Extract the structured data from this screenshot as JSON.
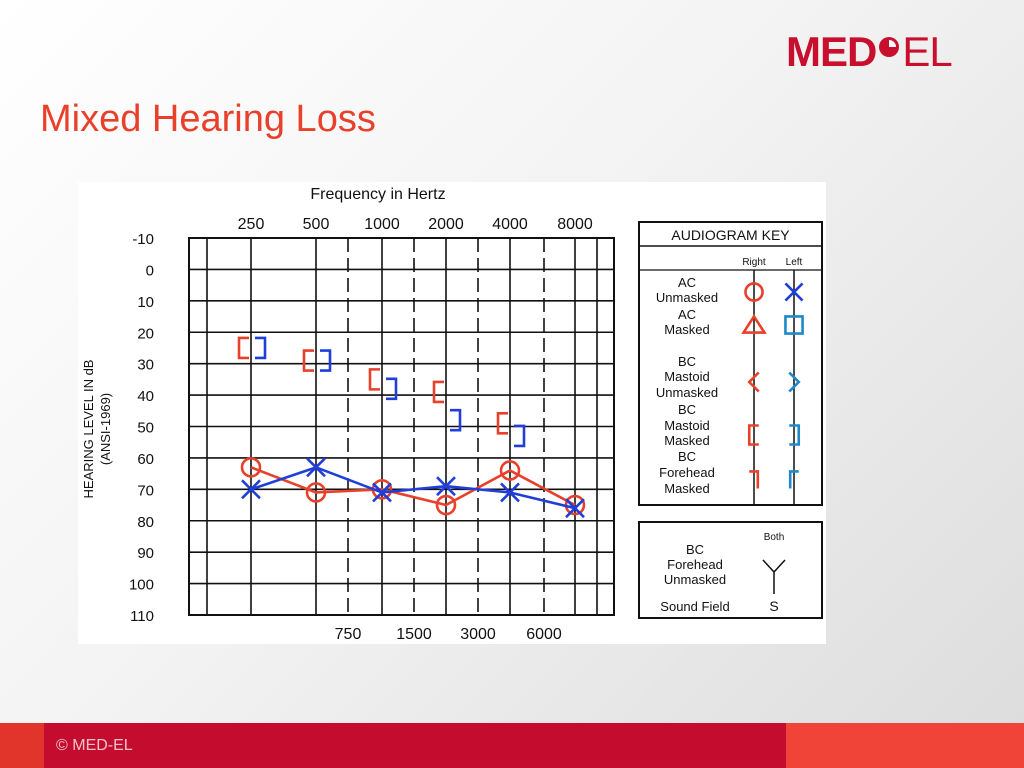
{
  "logo": {
    "left": "MED",
    "right": "EL",
    "color": "#c8102e"
  },
  "slide_title": "Mixed Hearing Loss",
  "footer": {
    "copyright": "© MED-EL"
  },
  "colors": {
    "right_ear": "#e8402b",
    "left_ear": "#1f3fd8",
    "key_left": "#1e88c8",
    "title": "#e8402b"
  },
  "chart_data": {
    "type": "scatter",
    "title": "Frequency in Hertz",
    "ylabel_lines": [
      "HEARING LEVEL IN dB",
      "(ANSI-1969)"
    ],
    "x_top_ticks": [
      "250",
      "500",
      "1000",
      "2000",
      "4000",
      "8000"
    ],
    "x_bottom_ticks": [
      "750",
      "1500",
      "3000",
      "6000"
    ],
    "y_ticks": [
      "-10",
      "0",
      "10",
      "20",
      "30",
      "40",
      "50",
      "60",
      "70",
      "80",
      "90",
      "100",
      "110"
    ],
    "ylim": [
      -10,
      110
    ],
    "y_inverted": true,
    "grid": true,
    "series": [
      {
        "name": "AC Unmasked Right",
        "symbol": "circle",
        "ear": "right",
        "connected": true,
        "x": [
          "250",
          "500",
          "1000",
          "2000",
          "4000",
          "8000"
        ],
        "y": [
          63,
          71,
          70,
          75,
          64,
          75
        ]
      },
      {
        "name": "AC Unmasked Left",
        "symbol": "x",
        "ear": "left",
        "connected": true,
        "x": [
          "250",
          "500",
          "1000",
          "2000",
          "4000",
          "8000"
        ],
        "y": [
          70,
          63,
          71,
          69,
          71,
          76
        ]
      },
      {
        "name": "BC Mastoid Masked Right",
        "symbol": "bracket-left",
        "ear": "right",
        "connected": false,
        "x": [
          "250",
          "500",
          "1000",
          "2000",
          "4000"
        ],
        "y": [
          25,
          29,
          35,
          39,
          49
        ]
      },
      {
        "name": "BC Mastoid Masked Left",
        "symbol": "bracket-right",
        "ear": "left",
        "connected": false,
        "x": [
          "250",
          "500",
          "1000",
          "2000",
          "4000"
        ],
        "y": [
          25,
          29,
          38,
          48,
          53
        ]
      }
    ],
    "key": {
      "title": "AUDIOGRAM KEY",
      "col_right": "Right",
      "col_left": "Left",
      "rows": [
        {
          "lines": [
            "AC",
            "Unmasked"
          ],
          "right_symbol": "circle",
          "left_symbol": "x"
        },
        {
          "lines": [
            "AC",
            "Masked"
          ],
          "right_symbol": "triangle",
          "left_symbol": "square"
        },
        {
          "lines": [
            "BC",
            "Mastoid",
            "Unmasked"
          ],
          "right_symbol": "angle-left",
          "left_symbol": "angle-right"
        },
        {
          "lines": [
            "BC",
            "Mastoid",
            "Masked"
          ],
          "right_symbol": "bracket-left",
          "left_symbol": "bracket-right"
        },
        {
          "lines": [
            "BC",
            "Forehead",
            "Masked"
          ],
          "right_symbol": "corner-right",
          "left_symbol": "corner-left"
        }
      ],
      "both_label": "Both",
      "bc_forehead_unmasked": [
        "BC",
        "Forehead",
        "Unmasked"
      ],
      "sound_field_label": "Sound Field",
      "sound_field_symbol": "S"
    }
  }
}
